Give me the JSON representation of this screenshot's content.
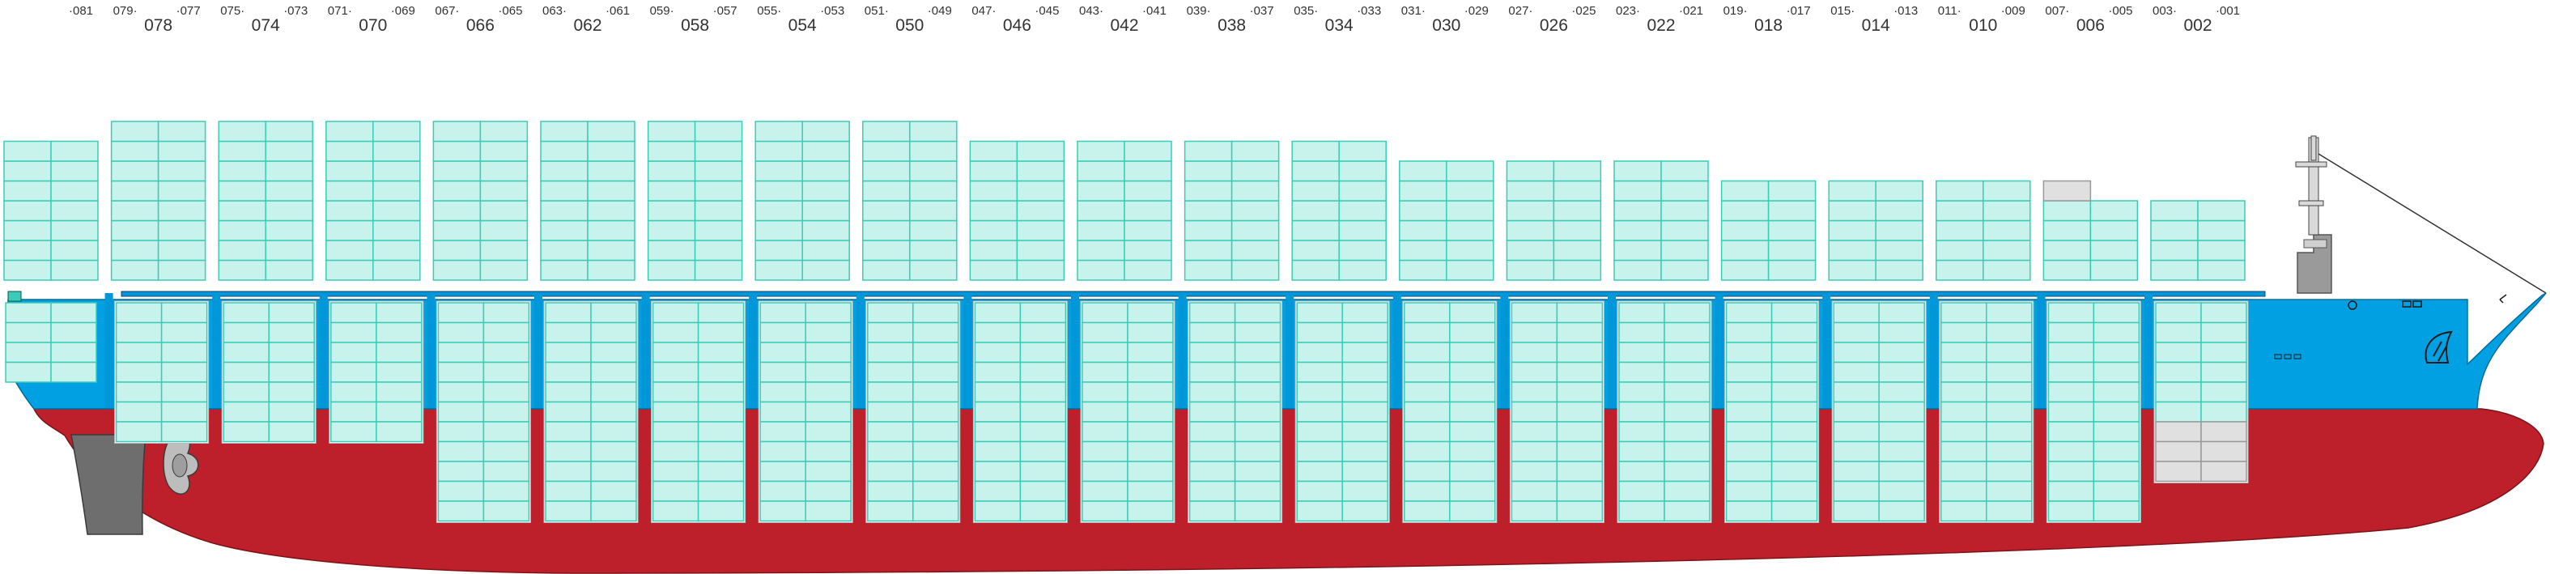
{
  "diagram": {
    "colors": {
      "hull_red": "#bd1f2b",
      "deck_blue": "#0097d8",
      "bow_blue": "#00a0e3",
      "container_fill": "#c8f3ec",
      "container_stroke": "#3ccbb8",
      "empty_slot_fill": "#e0e0e0",
      "empty_slot_stroke": "#999999",
      "rudder_gray": "#6e6e6e",
      "superstructure_gray": "#9a9a9a"
    },
    "bays": [
      {
        "even": "",
        "aft": "",
        "fwd": "·081"
      },
      {
        "even": "078",
        "aft": "079·",
        "fwd": "·077"
      },
      {
        "even": "074",
        "aft": "075·",
        "fwd": "·073"
      },
      {
        "even": "070",
        "aft": "071·",
        "fwd": "·069"
      },
      {
        "even": "066",
        "aft": "067·",
        "fwd": "·065"
      },
      {
        "even": "062",
        "aft": "063·",
        "fwd": "·061"
      },
      {
        "even": "058",
        "aft": "059·",
        "fwd": "·057"
      },
      {
        "even": "054",
        "aft": "055·",
        "fwd": "·053"
      },
      {
        "even": "050",
        "aft": "051·",
        "fwd": "·049"
      },
      {
        "even": "046",
        "aft": "047·",
        "fwd": "·045"
      },
      {
        "even": "042",
        "aft": "043·",
        "fwd": "·041"
      },
      {
        "even": "038",
        "aft": "039·",
        "fwd": "·037"
      },
      {
        "even": "034",
        "aft": "035·",
        "fwd": "·033"
      },
      {
        "even": "030",
        "aft": "031·",
        "fwd": "·029"
      },
      {
        "even": "026",
        "aft": "027·",
        "fwd": "·025"
      },
      {
        "even": "022",
        "aft": "023·",
        "fwd": "·021"
      },
      {
        "even": "018",
        "aft": "019·",
        "fwd": "·017"
      },
      {
        "even": "014",
        "aft": "015·",
        "fwd": "·013"
      },
      {
        "even": "010",
        "aft": "011·",
        "fwd": "·009"
      },
      {
        "even": "006",
        "aft": "007·",
        "fwd": "·005"
      },
      {
        "even": "002",
        "aft": "003·",
        "fwd": "·001"
      }
    ],
    "deck_tiers": [
      7,
      8,
      8,
      8,
      8,
      8,
      8,
      8,
      8,
      7,
      7,
      7,
      7,
      6,
      6,
      6,
      5,
      5,
      5,
      4,
      4
    ],
    "empty_deck_slots": [
      {
        "bay_index": 19,
        "count": 1
      }
    ],
    "hold_tiers": [
      4,
      7,
      7,
      7,
      11,
      11,
      11,
      11,
      11,
      11,
      11,
      11,
      11,
      11,
      11,
      11,
      11,
      11,
      11,
      11,
      6
    ],
    "empty_hold_slots": [
      {
        "bay_index": 20,
        "count": 3
      }
    ]
  }
}
